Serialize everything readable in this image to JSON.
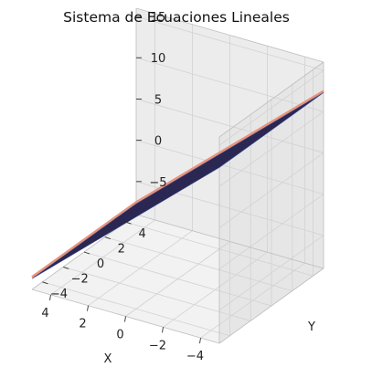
{
  "chart_data": {
    "type": "surface3d",
    "title": "Sistema de Ecuaciones Lineales",
    "xlabel": "X",
    "ylabel": "Y",
    "zlabel": "",
    "xlim": [
      -5,
      5
    ],
    "ylim": [
      -5,
      5
    ],
    "zlim": [
      -9,
      16
    ],
    "xticks": [
      -4,
      -2,
      0,
      2,
      4
    ],
    "yticks": [
      -4,
      -2,
      0,
      2,
      4
    ],
    "zticks": [
      -5,
      0,
      5,
      10,
      15
    ],
    "grid": true,
    "surfaces": [
      {
        "color": "#e8937a",
        "corners": [
          {
            "x": -5,
            "y": -5,
            "z": 12.5
          },
          {
            "x": 5,
            "y": -5,
            "z": -7.5
          },
          {
            "x": 5,
            "y": 5,
            "z": -7.5
          },
          {
            "x": -5,
            "y": 5,
            "z": 12.5
          }
        ]
      },
      {
        "color": "#232352",
        "corners": [
          {
            "x": -5,
            "y": -5,
            "z": 12.3
          },
          {
            "x": 5,
            "y": -5,
            "z": -7.7
          },
          {
            "x": 5,
            "y": 5,
            "z": -7.7
          },
          {
            "x": -5,
            "y": 5,
            "z": 12.3
          }
        ]
      }
    ]
  }
}
